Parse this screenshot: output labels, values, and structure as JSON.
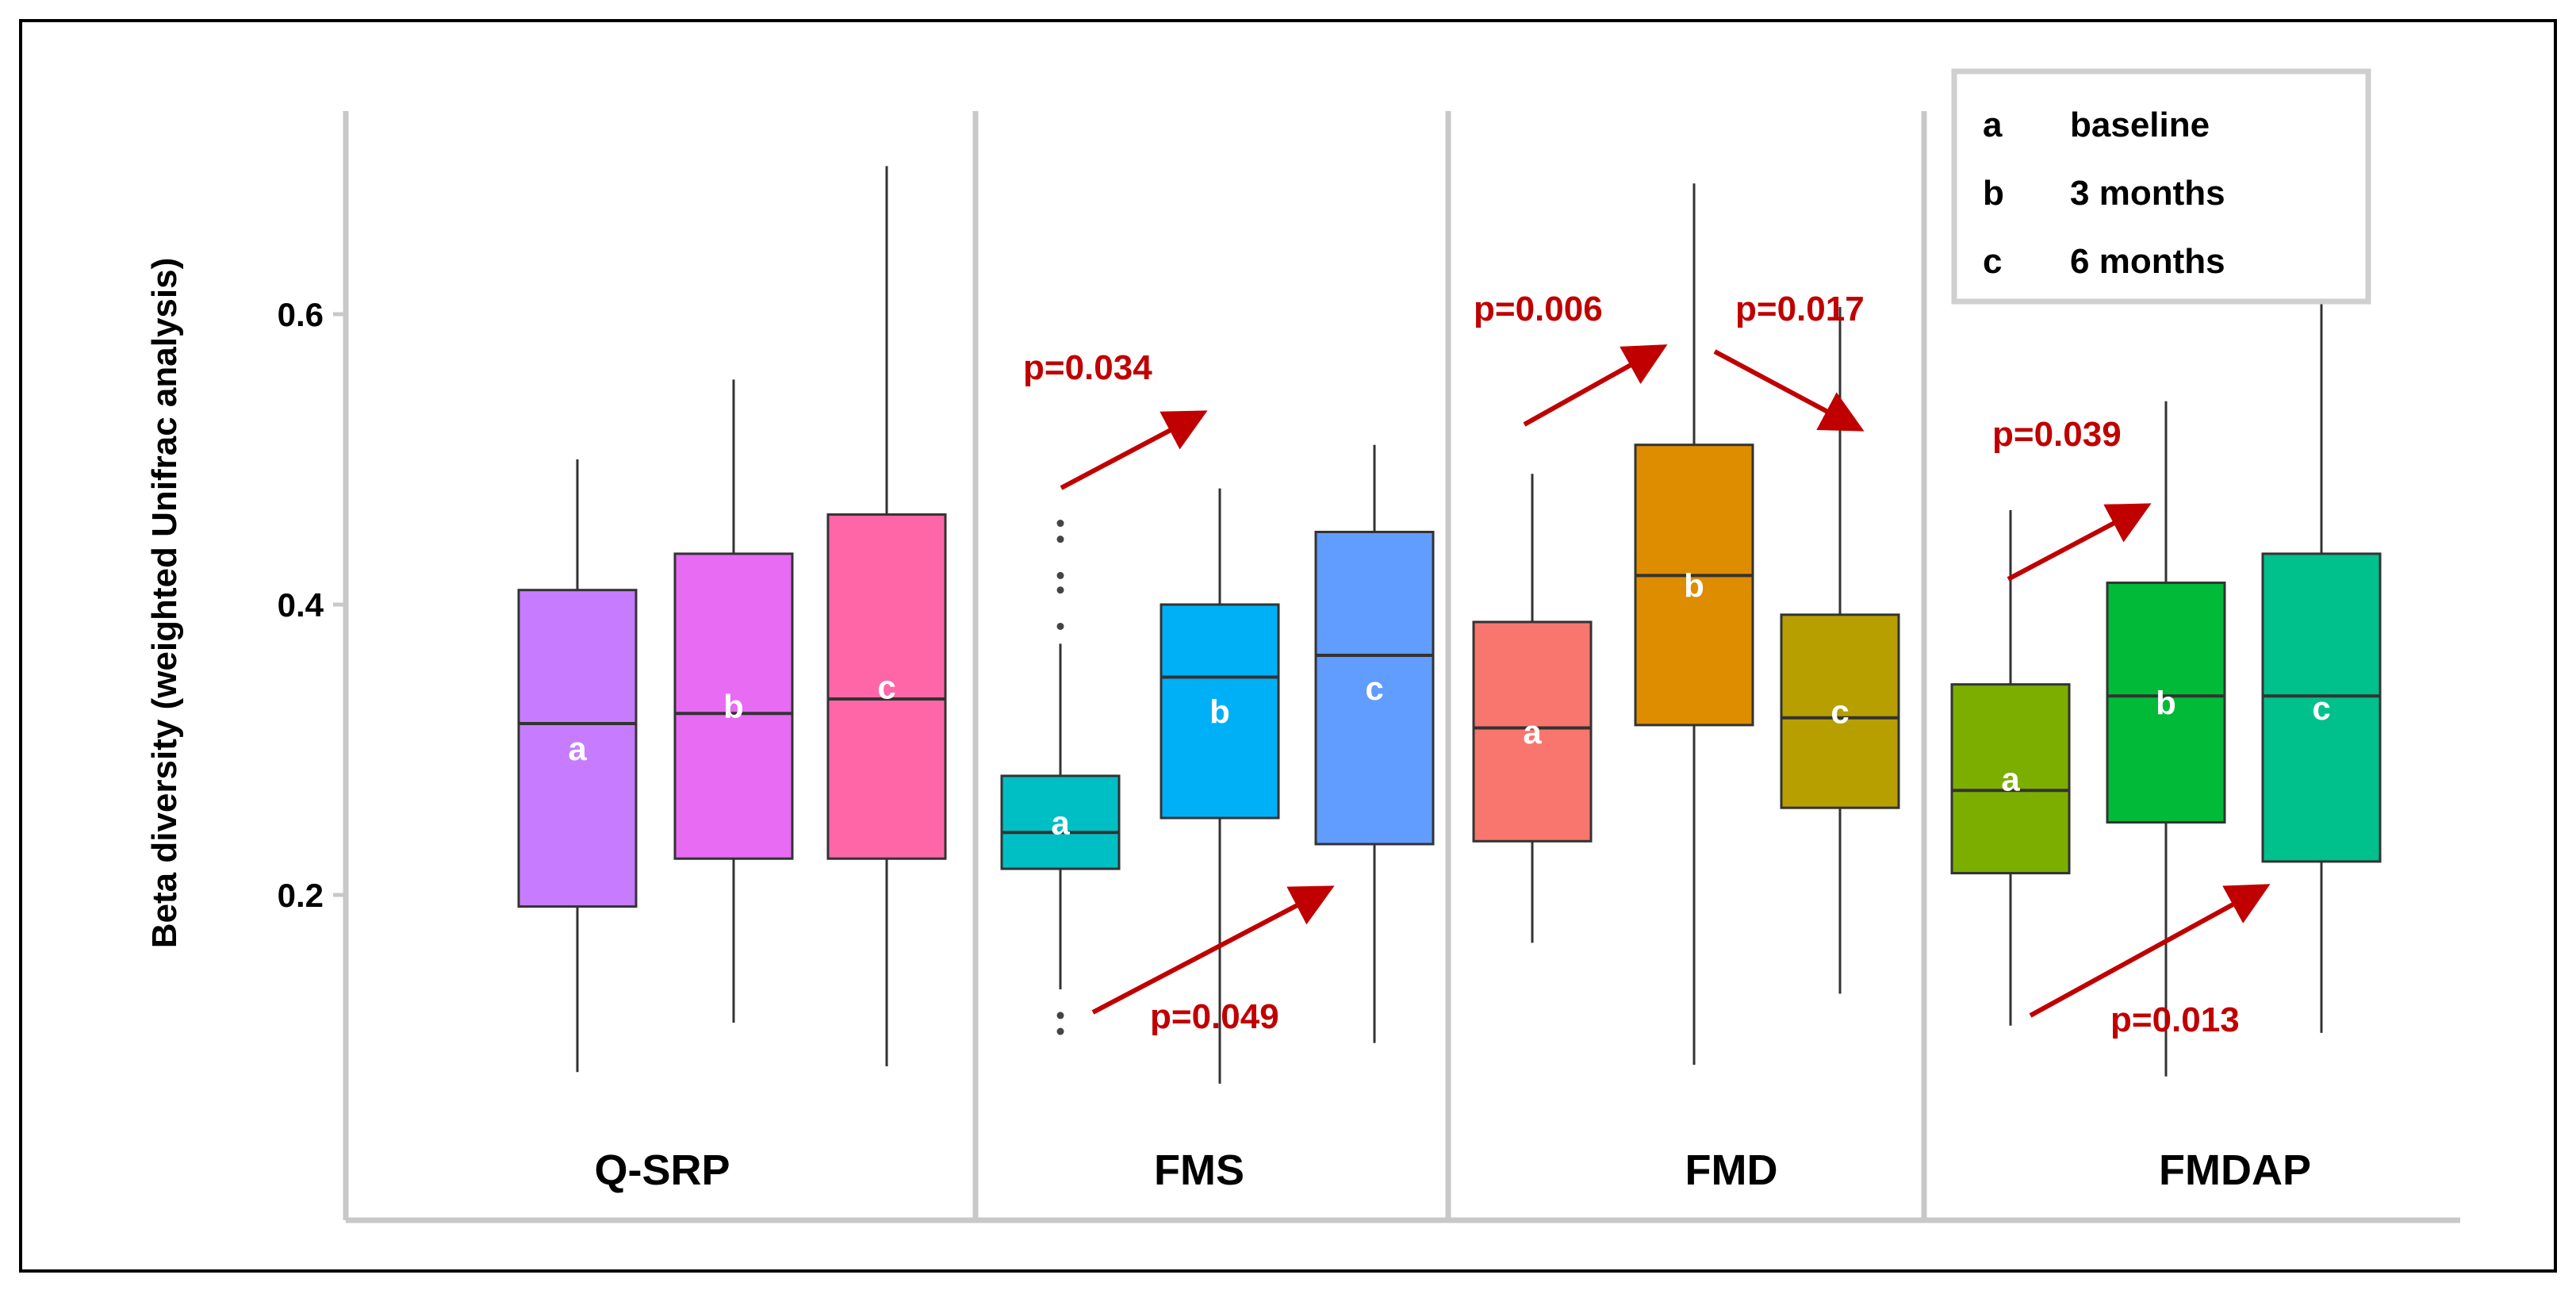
{
  "chart_data": {
    "type": "box",
    "ylabel": "Beta diversity (weighted Unifrac analysis)",
    "yticks": [
      0.2,
      0.4,
      0.6
    ],
    "ylim": [
      0.07,
      0.72
    ],
    "grid": false,
    "legend": {
      "position": "top-right",
      "entries": [
        {
          "key": "a",
          "label": "baseline"
        },
        {
          "key": "b",
          "label": "3 months"
        },
        {
          "key": "c",
          "label": "6 months"
        }
      ]
    },
    "groups": [
      {
        "name": "Q-SRP",
        "boxes": [
          {
            "label": "a",
            "color": "#c77cff",
            "min": 0.078,
            "q1": 0.192,
            "median": 0.318,
            "q3": 0.41,
            "max": 0.5,
            "outliers": []
          },
          {
            "label": "b",
            "color": "#e76bf3",
            "min": 0.112,
            "q1": 0.225,
            "median": 0.325,
            "q3": 0.435,
            "max": 0.555,
            "outliers": []
          },
          {
            "label": "c",
            "color": "#ff66a8",
            "min": 0.082,
            "q1": 0.225,
            "median": 0.335,
            "q3": 0.462,
            "max": 0.702,
            "outliers": []
          }
        ],
        "comparisons": []
      },
      {
        "name": "FMS",
        "boxes": [
          {
            "label": "a",
            "color": "#00bfc4",
            "min": 0.135,
            "q1": 0.218,
            "median": 0.243,
            "q3": 0.282,
            "max": 0.373,
            "outliers": [
              0.385,
              0.41,
              0.42,
              0.445,
              0.456,
              0.106,
              0.117
            ]
          },
          {
            "label": "b",
            "color": "#00b0f6",
            "min": 0.07,
            "q1": 0.253,
            "median": 0.35,
            "q3": 0.4,
            "max": 0.48,
            "outliers": []
          },
          {
            "label": "c",
            "color": "#619cff",
            "min": 0.098,
            "q1": 0.235,
            "median": 0.365,
            "q3": 0.45,
            "max": 0.51,
            "outliers": []
          }
        ],
        "comparisons": [
          {
            "from": "a",
            "to": "b",
            "text": "p=0.034"
          },
          {
            "from": "a",
            "to": "c",
            "text": "p=0.049"
          }
        ]
      },
      {
        "name": "FMD",
        "boxes": [
          {
            "label": "a",
            "color": "#f8766d",
            "min": 0.167,
            "q1": 0.237,
            "median": 0.315,
            "q3": 0.388,
            "max": 0.49,
            "outliers": []
          },
          {
            "label": "b",
            "color": "#de8c00",
            "min": 0.083,
            "q1": 0.317,
            "median": 0.42,
            "q3": 0.51,
            "max": 0.69,
            "outliers": []
          },
          {
            "label": "c",
            "color": "#b79f00",
            "min": 0.132,
            "q1": 0.26,
            "median": 0.322,
            "q3": 0.393,
            "max": 0.605,
            "outliers": []
          }
        ],
        "comparisons": [
          {
            "from": "a",
            "to": "b",
            "text": "p=0.006"
          },
          {
            "from": "b",
            "to": "c",
            "text": "p=0.017"
          }
        ]
      },
      {
        "name": "FMDAP",
        "boxes": [
          {
            "label": "a",
            "color": "#7cae00",
            "min": 0.11,
            "q1": 0.215,
            "median": 0.272,
            "q3": 0.345,
            "max": 0.465,
            "outliers": []
          },
          {
            "label": "b",
            "color": "#00ba38",
            "min": 0.075,
            "q1": 0.25,
            "median": 0.337,
            "q3": 0.415,
            "max": 0.54,
            "outliers": []
          },
          {
            "label": "c",
            "color": "#00c08b",
            "min": 0.105,
            "q1": 0.223,
            "median": 0.337,
            "q3": 0.435,
            "max": 0.63,
            "outliers": []
          }
        ],
        "comparisons": [
          {
            "from": "a",
            "to": "b",
            "text": "p=0.039"
          },
          {
            "from": "a",
            "to": "c",
            "text": "p=0.013"
          }
        ]
      }
    ]
  }
}
